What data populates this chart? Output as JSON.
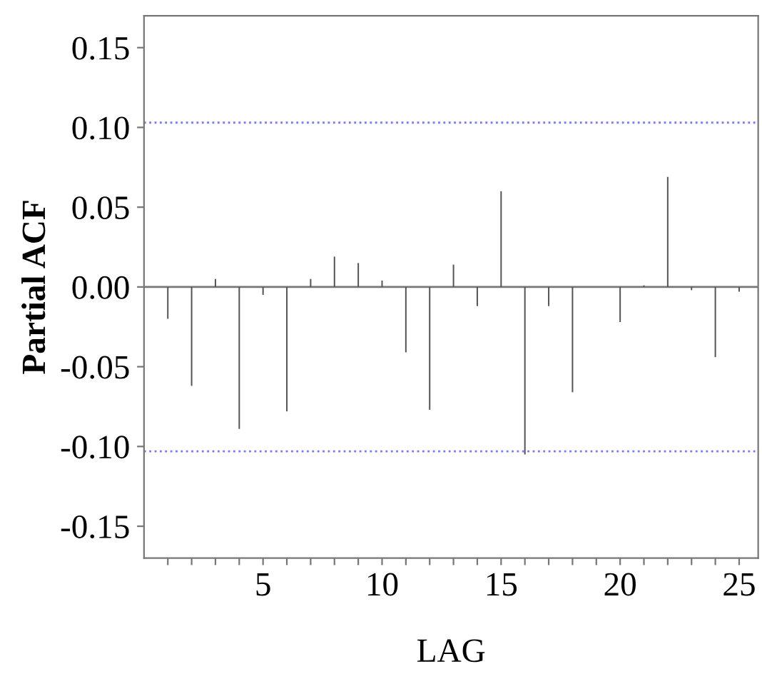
{
  "chart_data": {
    "type": "bar",
    "xlabel": "LAG",
    "ylabel": "Partial ACF",
    "x": [
      1,
      2,
      3,
      4,
      5,
      6,
      7,
      8,
      9,
      10,
      11,
      12,
      13,
      14,
      15,
      16,
      17,
      18,
      19,
      20,
      21,
      22,
      23,
      24,
      25
    ],
    "series": [
      {
        "color": "#555555",
        "values": [
          -0.02,
          -0.062,
          0.005,
          -0.089,
          -0.005,
          -0.078,
          0.005,
          0.019,
          0.015,
          0.004,
          -0.041,
          -0.077,
          0.014,
          -0.012,
          0.06,
          -0.105,
          -0.012,
          -0.066,
          0.0,
          -0.022,
          0.001,
          0.069,
          -0.002,
          -0.044,
          -0.003
        ]
      }
    ],
    "xlim": [
      0,
      25.8
    ],
    "xticks": [
      {
        "value": 1,
        "label": null
      },
      {
        "value": 2,
        "label": null
      },
      {
        "value": 3,
        "label": null
      },
      {
        "value": 4,
        "label": null
      },
      5,
      {
        "value": 6,
        "label": null
      },
      {
        "value": 7,
        "label": null
      },
      {
        "value": 8,
        "label": null
      },
      {
        "value": 9,
        "label": null
      },
      10,
      {
        "value": 11,
        "label": null
      },
      {
        "value": 12,
        "label": null
      },
      {
        "value": 13,
        "label": null
      },
      {
        "value": 14,
        "label": null
      },
      15,
      {
        "value": 16,
        "label": null
      },
      {
        "value": 17,
        "label": null
      },
      {
        "value": 18,
        "label": null
      },
      {
        "value": 19,
        "label": null
      },
      20,
      {
        "value": 21,
        "label": null
      },
      {
        "value": 22,
        "label": null
      },
      {
        "value": 23,
        "label": null
      },
      {
        "value": 24,
        "label": null
      },
      25
    ],
    "ylim": [
      -0.17,
      0.17
    ],
    "yticks": [
      {
        "value": -0.15,
        "label": "-0.15"
      },
      {
        "value": -0.1,
        "label": "-0.10"
      },
      {
        "value": -0.05,
        "label": "-0.05"
      },
      {
        "value": 0,
        "label": "0.00"
      },
      {
        "value": 0.05,
        "label": "0.05"
      },
      {
        "value": 0.1,
        "label": "0.10"
      },
      {
        "value": 0.15,
        "label": "0.15"
      }
    ],
    "ref_lines": [
      {
        "axis": "y",
        "value": 0.103,
        "color": "#7777ff",
        "line_style": "dotted"
      },
      {
        "axis": "y",
        "value": -0.103,
        "color": "#7777ff",
        "line_style": "dotted"
      },
      {
        "axis": "y",
        "value": 0,
        "color": "#777777",
        "line_style": "solid"
      }
    ],
    "grid": false,
    "legend": false
  }
}
